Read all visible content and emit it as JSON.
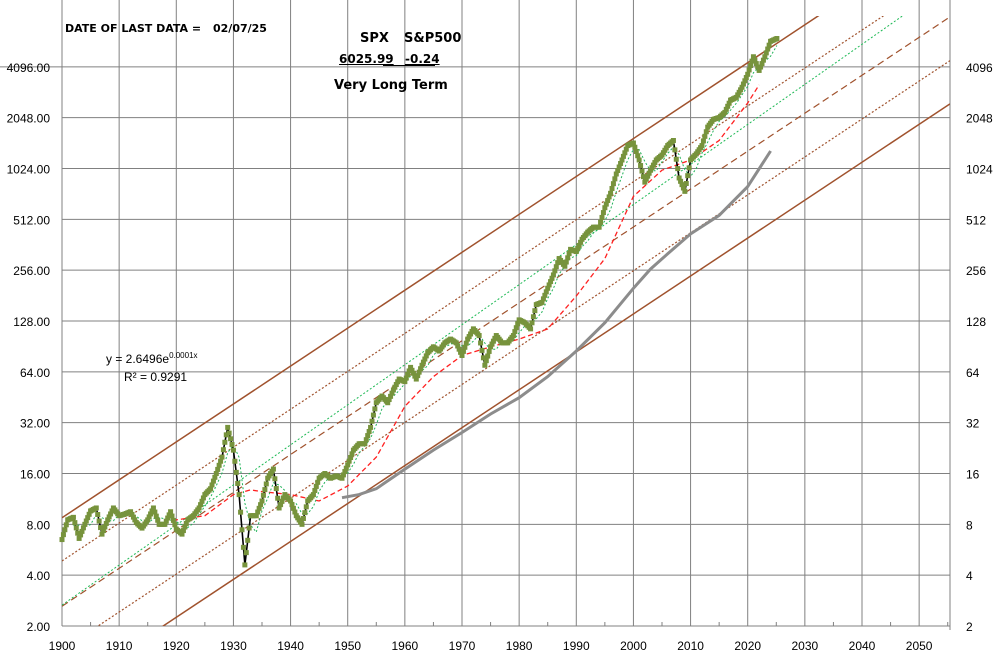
{
  "header": {
    "date_label": "DATE OF LAST DATA =",
    "date_value": "02/07/25",
    "symbol": "SPX",
    "index_name": "S&P500",
    "last_price": "6025.99",
    "change": "-0.24",
    "subtitle": "Very Long Term"
  },
  "colors": {
    "price_marker": "#77933c",
    "price_line": "#000000",
    "channel": "#a0522d",
    "regression": "#1db954",
    "long_ma": "#ff2020",
    "short_ma": "#22b35a",
    "gray_line": "#8c8c8c",
    "grid": "#808080"
  },
  "chart_data": {
    "type": "line",
    "title": "Very Long Term",
    "yscale": "log2",
    "xlim": [
      1900,
      2055.4
    ],
    "ylim": [
      2,
      8192
    ],
    "x_ticks": [
      "1900",
      "1910",
      "1920",
      "1930",
      "1940",
      "1950",
      "1960",
      "1970",
      "1980",
      "1990",
      "2000",
      "2010",
      "2020",
      "2030",
      "2040",
      "2050"
    ],
    "y_ticks_left": [
      "2.00",
      "4.00",
      "8.00",
      "16.00",
      "32.00",
      "64.00",
      "128.00",
      "256.00",
      "512.00",
      "1024.00",
      "2048.00",
      "4096.00"
    ],
    "y_ticks_right": [
      "2",
      "4",
      "8",
      "16",
      "32",
      "64",
      "128",
      "256",
      "512",
      "1024",
      "2048",
      "4096"
    ],
    "trendline": {
      "equation": "y = 2.6496e",
      "exponent": "0.0001x",
      "r2": "R² = 0.9291",
      "start": [
        1900,
        2.66
      ],
      "log2_slope_per_year": 0.0788
    },
    "channel": {
      "top_start": [
        1900,
        8.75
      ],
      "log2_slope_per_year": 0.0746,
      "log2_offsets": [
        0,
        -0.85,
        -1.74,
        -2.6,
        -3.45
      ],
      "styles": [
        "solid",
        "dotted",
        "dashed",
        "dotted",
        "solid"
      ]
    },
    "spx": {
      "x": [
        1900,
        1901,
        1902,
        1903,
        1904,
        1905,
        1906,
        1907,
        1908,
        1909,
        1910,
        1911,
        1912,
        1913,
        1914,
        1915,
        1916,
        1917,
        1918,
        1919,
        1920,
        1921,
        1922,
        1923,
        1924,
        1925,
        1926,
        1927,
        1928,
        1929,
        1930,
        1931,
        1932,
        1933,
        1934,
        1935,
        1936,
        1937,
        1938,
        1939,
        1940,
        1941,
        1942,
        1943,
        1944,
        1945,
        1946,
        1947,
        1948,
        1949,
        1950,
        1951,
        1952,
        1953,
        1954,
        1955,
        1956,
        1957,
        1958,
        1959,
        1960,
        1961,
        1962,
        1963,
        1964,
        1965,
        1966,
        1967,
        1968,
        1969,
        1970,
        1971,
        1972,
        1973,
        1974,
        1975,
        1976,
        1977,
        1978,
        1979,
        1980,
        1981,
        1982,
        1983,
        1984,
        1985,
        1986,
        1987,
        1988,
        1989,
        1990,
        1991,
        1992,
        1993,
        1994,
        1995,
        1996,
        1997,
        1998,
        1999,
        2000,
        2001,
        2002,
        2003,
        2004,
        2005,
        2006,
        2007,
        2008,
        2009,
        2010,
        2011,
        2012,
        2013,
        2014,
        2015,
        2016,
        2017,
        2018,
        2019,
        2020,
        2021,
        2022,
        2023,
        2024,
        2025.1
      ],
      "y": [
        6.5,
        8.5,
        8.8,
        6.6,
        8,
        9.6,
        10,
        7,
        8.5,
        10,
        9,
        9.2,
        9.5,
        8.2,
        7.6,
        8.5,
        10,
        8,
        8,
        9.5,
        7.5,
        7,
        8.5,
        9,
        10,
        12,
        13,
        16,
        20,
        30,
        22,
        12,
        4.6,
        9,
        9,
        11,
        15,
        17,
        10,
        12,
        11,
        9,
        8,
        11,
        12,
        15,
        16,
        15,
        15.5,
        15,
        18,
        22,
        24,
        24,
        30,
        42,
        46,
        42,
        50,
        58,
        56,
        68,
        58,
        70,
        83,
        90,
        85,
        95,
        100,
        95,
        80,
        100,
        115,
        105,
        70,
        90,
        105,
        95,
        95,
        105,
        130,
        125,
        115,
        160,
        165,
        200,
        240,
        300,
        270,
        340,
        330,
        390,
        430,
        460,
        460,
        600,
        730,
        950,
        1150,
        1400,
        1450,
        1150,
        850,
        1000,
        1150,
        1230,
        1400,
        1500,
        900,
        750,
        1150,
        1250,
        1400,
        1800,
        2000,
        2050,
        2200,
        2600,
        2700,
        3100,
        3700,
        4700,
        3900,
        4700,
        5800,
        6026
      ]
    },
    "long_ma": {
      "x": [
        1918,
        1920,
        1925,
        1930,
        1933,
        1935,
        1940,
        1945,
        1950,
        1955,
        1960,
        1965,
        1970,
        1975,
        1980,
        1985,
        1990,
        1995,
        2000,
        2005,
        2010,
        2015,
        2020,
        2022
      ],
      "y": [
        8.5,
        8.5,
        9,
        12,
        12.8,
        12.5,
        12,
        11,
        13.5,
        20,
        40,
        60,
        80,
        90,
        100,
        115,
        180,
        300,
        700,
        1000,
        1150,
        1500,
        2500,
        3200
      ]
    },
    "gray_line": {
      "x": [
        1949,
        1952,
        1955,
        1960,
        1965,
        1970,
        1975,
        1980,
        1985,
        1990,
        1995,
        2000,
        2003,
        2006,
        2010,
        2015,
        2020,
        2024
      ],
      "y": [
        11.5,
        12,
        13,
        17,
        22,
        28,
        36,
        45,
        60,
        85,
        125,
        200,
        260,
        320,
        420,
        540,
        800,
        1300
      ]
    }
  }
}
